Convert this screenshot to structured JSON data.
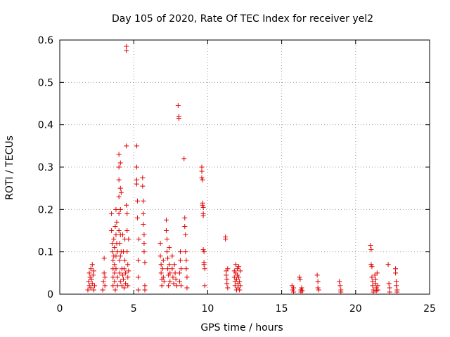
{
  "chart_data": {
    "type": "scatter",
    "title": "Day 105 of 2020, Rate Of TEC Index for receiver yel2",
    "xlabel": "GPS time / hours",
    "ylabel": "ROTI / TECUs",
    "xlim": [
      0,
      25
    ],
    "ylim": [
      0,
      0.6
    ],
    "xticks": [
      0,
      5,
      10,
      15,
      20,
      25
    ],
    "xtick_labels": [
      "0",
      "5",
      "10",
      "15",
      "20",
      "25"
    ],
    "yticks": [
      0,
      0.1,
      0.2,
      0.3,
      0.4,
      0.5,
      0.6
    ],
    "ytick_labels": [
      "0",
      "0.1",
      "0.2",
      "0.3",
      "0.4",
      "0.5",
      "0.6"
    ],
    "grid": true,
    "marker": "+",
    "color": "#e00000",
    "series": [
      {
        "name": "ROTI",
        "points": [
          [
            1.9,
            0.01
          ],
          [
            1.95,
            0.03
          ],
          [
            2.0,
            0.05
          ],
          [
            2.0,
            0.02
          ],
          [
            2.05,
            0.04
          ],
          [
            2.1,
            0.06
          ],
          [
            2.1,
            0.015
          ],
          [
            2.15,
            0.035
          ],
          [
            2.2,
            0.07
          ],
          [
            2.2,
            0.025
          ],
          [
            2.25,
            0.045
          ],
          [
            2.3,
            0.055
          ],
          [
            2.3,
            0.01
          ],
          [
            2.35,
            0.02
          ],
          [
            2.9,
            0.01
          ],
          [
            2.95,
            0.03
          ],
          [
            3.0,
            0.05
          ],
          [
            3.0,
            0.085
          ],
          [
            3.05,
            0.02
          ],
          [
            3.05,
            0.04
          ],
          [
            3.5,
            0.19
          ],
          [
            3.5,
            0.15
          ],
          [
            3.55,
            0.12
          ],
          [
            3.55,
            0.1
          ],
          [
            3.6,
            0.08
          ],
          [
            3.6,
            0.06
          ],
          [
            3.6,
            0.04
          ],
          [
            3.6,
            0.02
          ],
          [
            3.65,
            0.13
          ],
          [
            3.65,
            0.09
          ],
          [
            3.7,
            0.11
          ],
          [
            3.7,
            0.07
          ],
          [
            3.7,
            0.05
          ],
          [
            3.7,
            0.03
          ],
          [
            3.75,
            0.16
          ],
          [
            3.75,
            0.01
          ],
          [
            3.8,
            0.2
          ],
          [
            3.8,
            0.14
          ],
          [
            3.8,
            0.09
          ],
          [
            3.8,
            0.06
          ],
          [
            3.85,
            0.17
          ],
          [
            3.85,
            0.12
          ],
          [
            3.9,
            0.1
          ],
          [
            3.9,
            0.04
          ],
          [
            3.9,
            0.02
          ],
          [
            4.0,
            0.33
          ],
          [
            4.0,
            0.3
          ],
          [
            4.0,
            0.27
          ],
          [
            4.0,
            0.23
          ],
          [
            4.0,
            0.19
          ],
          [
            4.0,
            0.15
          ],
          [
            4.05,
            0.12
          ],
          [
            4.05,
            0.08
          ],
          [
            4.05,
            0.05
          ],
          [
            4.1,
            0.31
          ],
          [
            4.1,
            0.25
          ],
          [
            4.1,
            0.2
          ],
          [
            4.1,
            0.14
          ],
          [
            4.1,
            0.09
          ],
          [
            4.1,
            0.03
          ],
          [
            4.15,
            0.24
          ],
          [
            4.15,
            0.1
          ],
          [
            4.2,
            0.06
          ],
          [
            4.2,
            0.02
          ],
          [
            4.25,
            0.14
          ],
          [
            4.25,
            0.045
          ],
          [
            4.3,
            0.1
          ],
          [
            4.3,
            0.035
          ],
          [
            4.35,
            0.06
          ],
          [
            4.35,
            0.015
          ],
          [
            4.4,
            0.13
          ],
          [
            4.4,
            0.08
          ],
          [
            4.45,
            0.05
          ],
          [
            4.45,
            0.025
          ],
          [
            4.5,
            0.585
          ],
          [
            4.5,
            0.575
          ],
          [
            4.5,
            0.35
          ],
          [
            4.5,
            0.21
          ],
          [
            4.55,
            0.19
          ],
          [
            4.55,
            0.15
          ],
          [
            4.55,
            0.1
          ],
          [
            4.6,
            0.07
          ],
          [
            4.6,
            0.04
          ],
          [
            4.6,
            0.02
          ],
          [
            4.65,
            0.13
          ],
          [
            4.65,
            0.055
          ],
          [
            5.2,
            0.35
          ],
          [
            5.2,
            0.3
          ],
          [
            5.2,
            0.27
          ],
          [
            5.2,
            0.26
          ],
          [
            5.25,
            0.22
          ],
          [
            5.25,
            0.18
          ],
          [
            5.3,
            0.08
          ],
          [
            5.3,
            0.04
          ],
          [
            5.3,
            0.01
          ],
          [
            5.35,
            0.13
          ],
          [
            5.6,
            0.275
          ],
          [
            5.6,
            0.255
          ],
          [
            5.65,
            0.22
          ],
          [
            5.65,
            0.19
          ],
          [
            5.65,
            0.165
          ],
          [
            5.7,
            0.14
          ],
          [
            5.7,
            0.12
          ],
          [
            5.7,
            0.1
          ],
          [
            5.75,
            0.075
          ],
          [
            5.75,
            0.02
          ],
          [
            5.75,
            0.01
          ],
          [
            6.8,
            0.12
          ],
          [
            6.8,
            0.09
          ],
          [
            6.85,
            0.07
          ],
          [
            6.85,
            0.05
          ],
          [
            6.9,
            0.035
          ],
          [
            6.9,
            0.02
          ],
          [
            6.95,
            0.06
          ],
          [
            7.0,
            0.08
          ],
          [
            7.0,
            0.04
          ],
          [
            7.05,
            0.03
          ],
          [
            7.2,
            0.175
          ],
          [
            7.2,
            0.15
          ],
          [
            7.25,
            0.13
          ],
          [
            7.25,
            0.1
          ],
          [
            7.3,
            0.085
          ],
          [
            7.3,
            0.06
          ],
          [
            7.35,
            0.045
          ],
          [
            7.35,
            0.02
          ],
          [
            7.4,
            0.11
          ],
          [
            7.4,
            0.07
          ],
          [
            7.45,
            0.05
          ],
          [
            7.45,
            0.03
          ],
          [
            7.6,
            0.09
          ],
          [
            7.6,
            0.06
          ],
          [
            7.65,
            0.04
          ],
          [
            7.7,
            0.025
          ],
          [
            7.75,
            0.07
          ],
          [
            7.8,
            0.05
          ],
          [
            7.85,
            0.035
          ],
          [
            7.9,
            0.02
          ],
          [
            8.0,
            0.445
          ],
          [
            8.05,
            0.42
          ],
          [
            8.05,
            0.415
          ],
          [
            8.1,
            0.05
          ],
          [
            8.1,
            0.03
          ],
          [
            8.15,
            0.1
          ],
          [
            8.15,
            0.08
          ],
          [
            8.2,
            0.06
          ],
          [
            8.2,
            0.02
          ],
          [
            8.4,
            0.32
          ],
          [
            8.45,
            0.18
          ],
          [
            8.45,
            0.16
          ],
          [
            8.5,
            0.14
          ],
          [
            8.5,
            0.1
          ],
          [
            8.55,
            0.08
          ],
          [
            8.55,
            0.06
          ],
          [
            8.6,
            0.04
          ],
          [
            8.6,
            0.015
          ],
          [
            9.6,
            0.3
          ],
          [
            9.6,
            0.29
          ],
          [
            9.6,
            0.275
          ],
          [
            9.65,
            0.27
          ],
          [
            9.65,
            0.215
          ],
          [
            9.65,
            0.21
          ],
          [
            9.7,
            0.205
          ],
          [
            9.7,
            0.19
          ],
          [
            9.7,
            0.185
          ],
          [
            9.7,
            0.105
          ],
          [
            9.75,
            0.1
          ],
          [
            9.75,
            0.075
          ],
          [
            9.75,
            0.07
          ],
          [
            9.8,
            0.06
          ],
          [
            9.8,
            0.02
          ],
          [
            11.2,
            0.135
          ],
          [
            11.2,
            0.13
          ],
          [
            11.25,
            0.055
          ],
          [
            11.25,
            0.045
          ],
          [
            11.3,
            0.035
          ],
          [
            11.3,
            0.025
          ],
          [
            11.35,
            0.015
          ],
          [
            11.35,
            0.06
          ],
          [
            11.8,
            0.055
          ],
          [
            11.8,
            0.04
          ],
          [
            11.85,
            0.03
          ],
          [
            11.85,
            0.02
          ],
          [
            11.9,
            0.07
          ],
          [
            11.9,
            0.05
          ],
          [
            11.95,
            0.035
          ],
          [
            11.95,
            0.01
          ],
          [
            12.0,
            0.06
          ],
          [
            12.0,
            0.045
          ],
          [
            12.05,
            0.025
          ],
          [
            12.05,
            0.015
          ],
          [
            12.1,
            0.065
          ],
          [
            12.1,
            0.04
          ],
          [
            12.15,
            0.03
          ],
          [
            12.15,
            0.01
          ],
          [
            12.2,
            0.055
          ],
          [
            12.2,
            0.02
          ],
          [
            15.7,
            0.02
          ],
          [
            15.75,
            0.01
          ],
          [
            15.8,
            0.015
          ],
          [
            15.8,
            0.005
          ],
          [
            16.2,
            0.04
          ],
          [
            16.25,
            0.035
          ],
          [
            16.3,
            0.01
          ],
          [
            16.3,
            0.005
          ],
          [
            16.35,
            0.015
          ],
          [
            16.4,
            0.008
          ],
          [
            17.4,
            0.045
          ],
          [
            17.45,
            0.03
          ],
          [
            17.45,
            0.015
          ],
          [
            17.5,
            0.01
          ],
          [
            18.9,
            0.03
          ],
          [
            18.95,
            0.02
          ],
          [
            19.0,
            0.01
          ],
          [
            19.0,
            0.005
          ],
          [
            21.0,
            0.115
          ],
          [
            21.05,
            0.105
          ],
          [
            21.05,
            0.07
          ],
          [
            21.1,
            0.065
          ],
          [
            21.1,
            0.04
          ],
          [
            21.15,
            0.03
          ],
          [
            21.15,
            0.02
          ],
          [
            21.2,
            0.01
          ],
          [
            21.2,
            0.005
          ],
          [
            21.3,
            0.045
          ],
          [
            21.35,
            0.035
          ],
          [
            21.35,
            0.025
          ],
          [
            21.4,
            0.015
          ],
          [
            21.4,
            0.008
          ],
          [
            21.45,
            0.05
          ],
          [
            21.5,
            0.02
          ],
          [
            21.5,
            0.01
          ],
          [
            22.2,
            0.07
          ],
          [
            22.25,
            0.025
          ],
          [
            22.3,
            0.015
          ],
          [
            22.3,
            0.005
          ],
          [
            22.7,
            0.06
          ],
          [
            22.7,
            0.05
          ],
          [
            22.75,
            0.03
          ],
          [
            22.75,
            0.02
          ],
          [
            22.8,
            0.01
          ],
          [
            22.8,
            0.005
          ]
        ]
      }
    ]
  }
}
